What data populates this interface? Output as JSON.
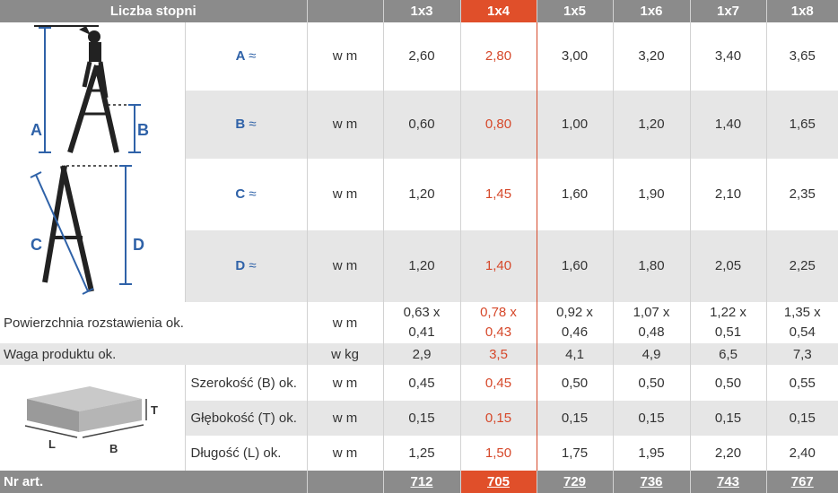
{
  "header": {
    "label": "Liczba stopni",
    "columns": [
      "1x3",
      "1x4",
      "1x5",
      "1x6",
      "1x7",
      "1x8"
    ],
    "highlight_index": 1
  },
  "diagram": {
    "letters": [
      "A",
      "B",
      "C",
      "D"
    ]
  },
  "box_diagram": {
    "letters": [
      "T",
      "L",
      "B"
    ]
  },
  "rows": [
    {
      "label": "A",
      "sym": "≈",
      "unit": "w m",
      "values": [
        "2,60",
        "2,80",
        "3,00",
        "3,20",
        "3,40",
        "3,65"
      ]
    },
    {
      "label": "B",
      "sym": "≈",
      "unit": "w m",
      "values": [
        "0,60",
        "0,80",
        "1,00",
        "1,20",
        "1,40",
        "1,65"
      ]
    },
    {
      "label": "C",
      "sym": "≈",
      "unit": "w m",
      "values": [
        "1,20",
        "1,45",
        "1,60",
        "1,90",
        "2,10",
        "2,35"
      ]
    },
    {
      "label": "D",
      "sym": "≈",
      "unit": "w m",
      "values": [
        "1,20",
        "1,40",
        "1,60",
        "1,80",
        "2,05",
        "2,25"
      ]
    }
  ],
  "surface": {
    "label": "Powierzchnia rozstawienia ok.",
    "unit": "w m",
    "top": [
      "0,63 x",
      "0,78 x",
      "0,92 x",
      "1,07 x",
      "1,22 x",
      "1,35 x"
    ],
    "bottom": [
      "0,41",
      "0,43",
      "0,46",
      "0,48",
      "0,51",
      "0,54"
    ]
  },
  "weight": {
    "label": "Waga produktu ok.",
    "unit": "w kg",
    "values": [
      "2,9",
      "3,5",
      "4,1",
      "4,9",
      "6,5",
      "7,3"
    ]
  },
  "packaging": [
    {
      "label": "Szerokość (B) ok.",
      "unit": "w m",
      "values": [
        "0,45",
        "0,45",
        "0,50",
        "0,50",
        "0,50",
        "0,55"
      ]
    },
    {
      "label": "Głębokość (T) ok.",
      "unit": "w m",
      "values": [
        "0,15",
        "0,15",
        "0,15",
        "0,15",
        "0,15",
        "0,15"
      ]
    },
    {
      "label": "Długość (L) ok.",
      "unit": "w m",
      "values": [
        "1,25",
        "1,50",
        "1,75",
        "1,95",
        "2,20",
        "2,40"
      ]
    }
  ],
  "footer": {
    "label": "Nr art.",
    "values": [
      "712",
      "705",
      "729",
      "736",
      "743",
      "767"
    ]
  },
  "colors": {
    "header_gray": "#8b8b8b",
    "accent": "#e04f2a",
    "label_blue": "#2f62a8"
  }
}
